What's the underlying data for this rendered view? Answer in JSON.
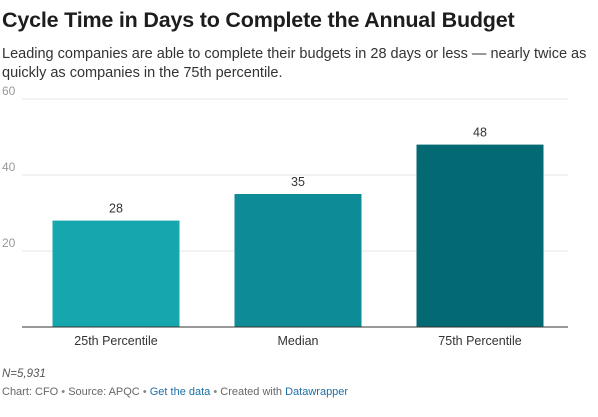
{
  "header": {
    "title": "Cycle Time in Days to Complete the Annual Budget",
    "subtitle": "Leading companies are able to complete their budgets in 28 days or less — nearly twice as quickly as companies in the 75th percentile."
  },
  "chart_data": {
    "type": "bar",
    "title": "Cycle Time in Days to Complete the Annual Budget",
    "xlabel": "",
    "ylabel": "",
    "categories": [
      "25th Percentile",
      "Median",
      "75th Percentile"
    ],
    "values": [
      28,
      35,
      48
    ],
    "value_labels": [
      "28",
      "35",
      "48"
    ],
    "colors": [
      "#16a6ae",
      "#0d8c97",
      "#036a73"
    ],
    "ylim": [
      0,
      60
    ],
    "yticks": [
      20,
      40,
      60
    ],
    "ytick_labels": [
      "20",
      "40",
      "60"
    ],
    "grid": true,
    "legend": "none"
  },
  "footer": {
    "note": "N=5,931",
    "chart_credit": "Chart: CFO",
    "source": "Source: APQC",
    "get_data": "Get the data",
    "created_with": "Created with",
    "tool": "Datawrapper",
    "separator": "•"
  }
}
